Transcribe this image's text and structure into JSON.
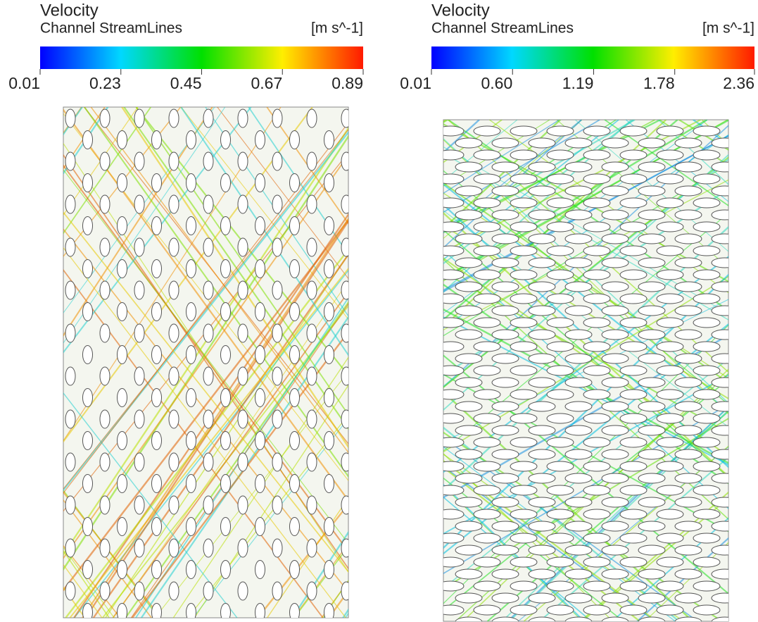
{
  "panels": [
    {
      "variable": "Velocity",
      "subtitle": "Channel StreamLines",
      "unit": "[m s^-1]",
      "colorbar": {
        "range": [
          0.01,
          0.89
        ],
        "ticks": [
          0.01,
          0.23,
          0.45,
          0.67,
          0.89
        ]
      }
    },
    {
      "variable": "Velocity",
      "subtitle": "Channel StreamLines",
      "unit": "[m s^-1]",
      "colorbar": {
        "range": [
          0.01,
          2.36
        ],
        "ticks": [
          0.01,
          {
            "value": 0.6,
            "label": "0.60"
          },
          1.19,
          1.78,
          2.36
        ]
      }
    }
  ]
}
